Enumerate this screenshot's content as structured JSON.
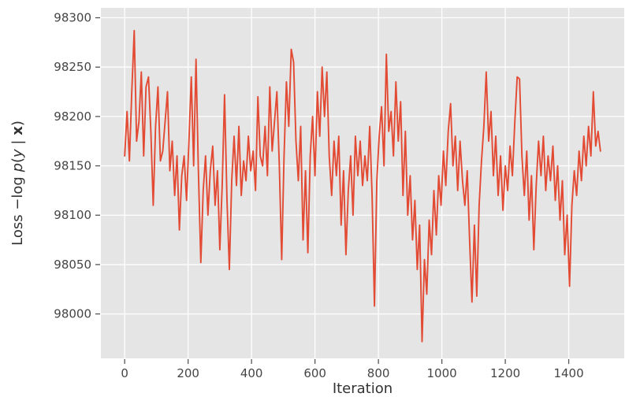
{
  "chart_data": {
    "type": "line",
    "title": "",
    "xlabel": "Iteration",
    "ylabel": "Loss −log p(y | x)",
    "ylabel_parts": [
      {
        "text": "Loss −log ",
        "style": "normal"
      },
      {
        "text": "p",
        "style": "italic"
      },
      {
        "text": "(",
        "style": "normal"
      },
      {
        "text": "y",
        "style": "italic"
      },
      {
        "text": " | ",
        "style": "normal"
      },
      {
        "text": "x",
        "style": "bold"
      },
      {
        "text": ")",
        "style": "normal"
      }
    ],
    "xlim": [
      -75,
      1575
    ],
    "ylim": [
      97955,
      98310
    ],
    "xticks": [
      0,
      200,
      400,
      600,
      800,
      1000,
      1200,
      1400
    ],
    "yticks": [
      98000,
      98050,
      98100,
      98150,
      98200,
      98250,
      98300
    ],
    "grid": true,
    "legend": "none",
    "style": "ggplot",
    "line_color": "#E24A33",
    "plot_bg": "#E5E5E5",
    "grid_color": "#FFFFFF",
    "tick_color": "#555555",
    "series": [
      {
        "name": "loss",
        "x_start": 0,
        "x_step": 7.5,
        "values": [
          98160,
          98205,
          98155,
          98225,
          98287,
          98175,
          98195,
          98245,
          98160,
          98230,
          98240,
          98185,
          98110,
          98190,
          98230,
          98155,
          98165,
          98195,
          98225,
          98145,
          98175,
          98120,
          98160,
          98085,
          98140,
          98160,
          98115,
          98175,
          98240,
          98150,
          98258,
          98145,
          98052,
          98125,
          98160,
          98100,
          98145,
          98170,
          98110,
          98145,
          98065,
          98130,
          98222,
          98115,
          98045,
          98135,
          98180,
          98130,
          98190,
          98120,
          98155,
          98135,
          98180,
          98145,
          98165,
          98125,
          98220,
          98160,
          98150,
          98190,
          98140,
          98230,
          98165,
          98195,
          98225,
          98150,
          98055,
          98160,
          98235,
          98190,
          98268,
          98255,
          98175,
          98135,
          98190,
          98075,
          98145,
          98062,
          98160,
          98200,
          98140,
          98225,
          98180,
          98250,
          98200,
          98245,
          98160,
          98120,
          98175,
          98140,
          98180,
          98090,
          98145,
          98060,
          98125,
          98160,
          98100,
          98180,
          98140,
          98175,
          98130,
          98160,
          98135,
          98190,
          98120,
          98008,
          98135,
          98180,
          98210,
          98150,
          98263,
          98185,
          98205,
          98160,
          98235,
          98175,
          98215,
          98120,
          98185,
          98100,
          98140,
          98075,
          98115,
          98045,
          98090,
          97972,
          98055,
          98020,
          98095,
          98060,
          98125,
          98080,
          98140,
          98110,
          98165,
          98130,
          98185,
          98213,
          98150,
          98180,
          98125,
          98175,
          98135,
          98110,
          98145,
          98075,
          98012,
          98090,
          98018,
          98110,
          98155,
          98190,
          98245,
          98175,
          98205,
          98140,
          98180,
          98120,
          98160,
          98105,
          98150,
          98125,
          98170,
          98140,
          98195,
          98240,
          98238,
          98160,
          98120,
          98165,
          98095,
          98140,
          98065,
          98130,
          98175,
          98140,
          98180,
          98125,
          98160,
          98135,
          98170,
          98115,
          98150,
          98095,
          98135,
          98060,
          98100,
          98028,
          98110,
          98145,
          98120,
          98165,
          98135,
          98180,
          98150,
          98190,
          98160,
          98225,
          98170,
          98185,
          98165
        ]
      }
    ]
  }
}
